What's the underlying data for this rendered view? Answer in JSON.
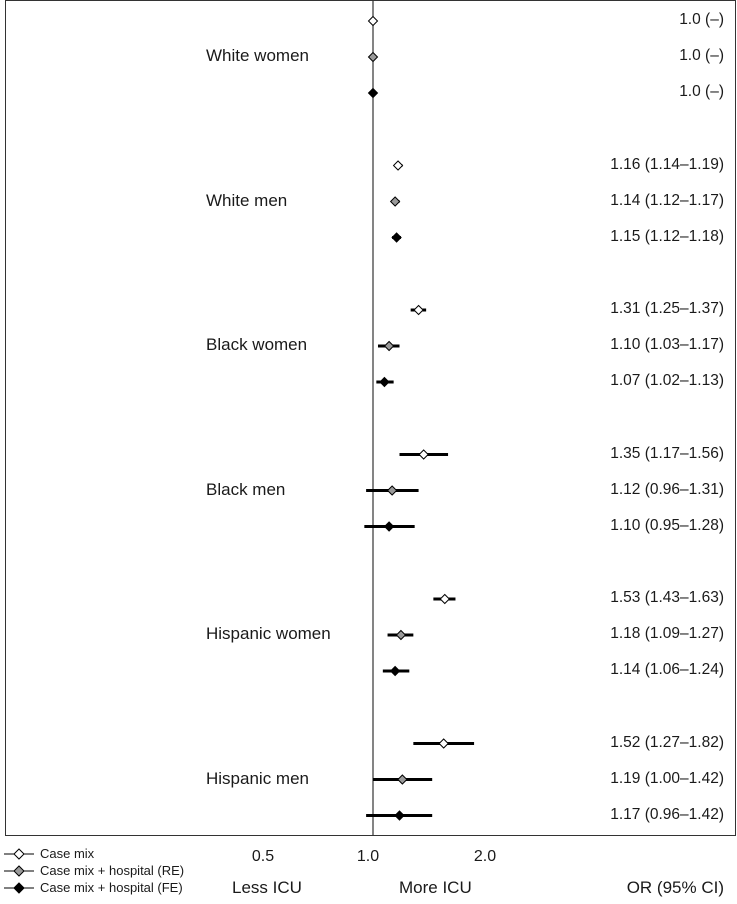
{
  "chart_data": {
    "type": "forest",
    "xlabel_left": "Less ICU",
    "xlabel_center": "More ICU",
    "column_label": "OR (95% CI)",
    "x_ticks": [
      {
        "value": 0.5,
        "label": "0.5"
      },
      {
        "value": 1.0,
        "label": "1.0"
      },
      {
        "value": 2.0,
        "label": "2.0"
      }
    ],
    "reference_value": 1.0,
    "series": [
      {
        "name": "Case mix",
        "marker": "open-diamond",
        "color": "#ffffff"
      },
      {
        "name": "Case mix + hospital (RE)",
        "marker": "gray-diamond",
        "color": "#9a9a9a"
      },
      {
        "name": "Case mix + hospital (FE)",
        "marker": "filled-diamond",
        "color": "#000000"
      }
    ],
    "groups": [
      {
        "label": "White women",
        "estimates": [
          {
            "or": 1.0,
            "lo": null,
            "hi": null,
            "text": "1.0 (–)"
          },
          {
            "or": 1.0,
            "lo": null,
            "hi": null,
            "text": "1.0 (–)"
          },
          {
            "or": 1.0,
            "lo": null,
            "hi": null,
            "text": "1.0 (–)"
          }
        ]
      },
      {
        "label": "White men",
        "estimates": [
          {
            "or": 1.16,
            "lo": 1.14,
            "hi": 1.19,
            "text": "1.16 (1.14–1.19)"
          },
          {
            "or": 1.14,
            "lo": 1.12,
            "hi": 1.17,
            "text": "1.14 (1.12–1.17)"
          },
          {
            "or": 1.15,
            "lo": 1.12,
            "hi": 1.18,
            "text": "1.15 (1.12–1.18)"
          }
        ]
      },
      {
        "label": "Black women",
        "estimates": [
          {
            "or": 1.31,
            "lo": 1.25,
            "hi": 1.37,
            "text": "1.31 (1.25–1.37)"
          },
          {
            "or": 1.1,
            "lo": 1.03,
            "hi": 1.17,
            "text": "1.10 (1.03–1.17)"
          },
          {
            "or": 1.07,
            "lo": 1.02,
            "hi": 1.13,
            "text": "1.07 (1.02–1.13)"
          }
        ]
      },
      {
        "label": "Black men",
        "estimates": [
          {
            "or": 1.35,
            "lo": 1.17,
            "hi": 1.56,
            "text": "1.35 (1.17–1.56)"
          },
          {
            "or": 1.12,
            "lo": 0.96,
            "hi": 1.31,
            "text": "1.12 (0.96–1.31)"
          },
          {
            "or": 1.1,
            "lo": 0.95,
            "hi": 1.28,
            "text": "1.10 (0.95–1.28)"
          }
        ]
      },
      {
        "label": "Hispanic women",
        "estimates": [
          {
            "or": 1.53,
            "lo": 1.43,
            "hi": 1.63,
            "text": "1.53 (1.43–1.63)"
          },
          {
            "or": 1.18,
            "lo": 1.09,
            "hi": 1.27,
            "text": "1.18 (1.09–1.27)"
          },
          {
            "or": 1.14,
            "lo": 1.06,
            "hi": 1.24,
            "text": "1.14 (1.06–1.24)"
          }
        ]
      },
      {
        "label": "Hispanic men",
        "estimates": [
          {
            "or": 1.52,
            "lo": 1.27,
            "hi": 1.82,
            "text": "1.52 (1.27–1.82)"
          },
          {
            "or": 1.19,
            "lo": 1.0,
            "hi": 1.42,
            "text": "1.19 (1.00–1.42)"
          },
          {
            "or": 1.17,
            "lo": 0.96,
            "hi": 1.42,
            "text": "1.17 (0.96–1.42)"
          }
        ]
      }
    ]
  }
}
